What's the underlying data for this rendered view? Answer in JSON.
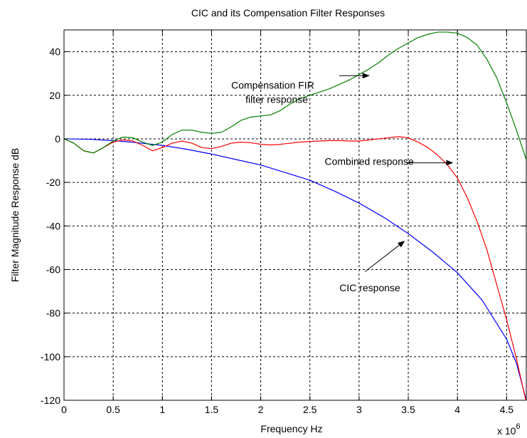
{
  "chart_data": {
    "type": "line",
    "title": "CIC and its Compensation Filter Responses",
    "xlabel": "Frequency Hz",
    "ylabel": "Filter Magnitude Response dB",
    "x_multiplier": "x 10",
    "x_multiplier_exp": "6",
    "xlim": [
      0,
      4.7
    ],
    "ylim": [
      -120,
      50
    ],
    "x_ticks": [
      0,
      0.5,
      1,
      1.5,
      2,
      2.5,
      3,
      3.5,
      4,
      4.5
    ],
    "x_tick_labels": [
      "0",
      "0.5",
      "1",
      "1.5",
      "2",
      "2.5",
      "3",
      "3.5",
      "4",
      "4.5"
    ],
    "y_ticks": [
      40,
      20,
      0,
      -20,
      -40,
      -60,
      -80,
      -100,
      -120
    ],
    "y_tick_labels": [
      "40",
      "20",
      "0",
      "-20",
      "-40",
      "-60",
      "-80",
      "-100",
      "-120"
    ],
    "grid": true,
    "grid_style": "dashed",
    "series": [
      {
        "color": "#0000ff",
        "x": [
          0,
          0.25,
          0.5,
          0.75,
          1.0,
          1.25,
          1.5,
          1.75,
          2.0,
          2.25,
          2.5,
          2.75,
          3.0,
          3.25,
          3.5,
          3.75,
          4.0,
          4.25,
          4.5,
          4.6,
          4.7
        ],
        "y": [
          0,
          -0.2,
          -0.8,
          -1.8,
          -3,
          -4.8,
          -7,
          -9.5,
          -12,
          -15.5,
          -19,
          -24,
          -29.5,
          -36,
          -43.5,
          -52,
          -61.5,
          -74,
          -92,
          -103,
          -120
        ]
      },
      {
        "color": "#ff0000",
        "x": [
          0,
          0.1,
          0.2,
          0.3,
          0.4,
          0.5,
          0.6,
          0.7,
          0.8,
          0.9,
          1.0,
          1.1,
          1.2,
          1.3,
          1.4,
          1.5,
          1.6,
          1.7,
          1.8,
          1.9,
          2.0,
          2.1,
          2.2,
          2.3,
          2.4,
          2.5,
          2.6,
          2.7,
          2.8,
          2.9,
          3.0,
          3.1,
          3.2,
          3.3,
          3.4,
          3.5,
          3.6,
          3.7,
          3.8,
          3.9,
          4.0,
          4.1,
          4.2,
          4.3,
          4.4,
          4.5,
          4.6,
          4.7
        ],
        "y": [
          0,
          -2,
          -5.5,
          -6.5,
          -4,
          -1.5,
          -0.5,
          -1,
          -3,
          -5.5,
          -4,
          -2,
          -1,
          -2,
          -4,
          -4.5,
          -3.5,
          -2,
          -1.5,
          -1.8,
          -2.5,
          -2.8,
          -2.5,
          -2,
          -1.5,
          -1.2,
          -1,
          -0.8,
          -0.8,
          -1,
          -1,
          -0.5,
          0,
          0.5,
          1,
          0.5,
          -1.5,
          -4,
          -7.5,
          -12,
          -18,
          -27,
          -38,
          -51,
          -67,
          -83,
          -101,
          -121
        ]
      },
      {
        "color": "#008000",
        "x": [
          0,
          0.1,
          0.2,
          0.3,
          0.4,
          0.5,
          0.6,
          0.7,
          0.8,
          0.9,
          1.0,
          1.1,
          1.2,
          1.3,
          1.4,
          1.5,
          1.6,
          1.7,
          1.8,
          1.9,
          2.0,
          2.1,
          2.2,
          2.3,
          2.4,
          2.5,
          2.6,
          2.7,
          2.8,
          2.9,
          3.0,
          3.1,
          3.2,
          3.3,
          3.4,
          3.5,
          3.6,
          3.7,
          3.8,
          3.9,
          4.0,
          4.1,
          4.2,
          4.3,
          4.4,
          4.5,
          4.6,
          4.7
        ],
        "y": [
          0,
          -2,
          -5.5,
          -6.5,
          -4,
          -1,
          0.8,
          0.5,
          -1.5,
          -3,
          -1.5,
          2,
          4,
          4,
          3,
          2.5,
          3,
          5.5,
          8.5,
          10,
          10.5,
          11,
          13,
          16,
          18.5,
          20,
          21.5,
          23,
          25,
          27,
          29.5,
          32,
          35,
          38.5,
          41.5,
          44,
          46.5,
          48,
          49,
          49,
          48.5,
          46.5,
          43,
          36.5,
          28,
          16.5,
          4,
          -9.5
        ]
      }
    ],
    "annotations": [
      {
        "text_lines": [
          "Compensation FIR",
          "filter response"
        ],
        "text_x": 1.7,
        "text_y": 23,
        "arrow_from": [
          2.8,
          29
        ],
        "arrow_to": [
          3.1,
          29
        ]
      },
      {
        "text_lines": [
          "Combined response"
        ],
        "text_x": 2.65,
        "text_y": -12,
        "arrow_from": [
          3.48,
          -11
        ],
        "arrow_to": [
          3.95,
          -11
        ]
      },
      {
        "text_lines": [
          "CIC response"
        ],
        "text_x": 2.8,
        "text_y": -70,
        "arrow_from": [
          3.06,
          -61
        ],
        "arrow_to": [
          3.46,
          -47
        ]
      }
    ]
  }
}
